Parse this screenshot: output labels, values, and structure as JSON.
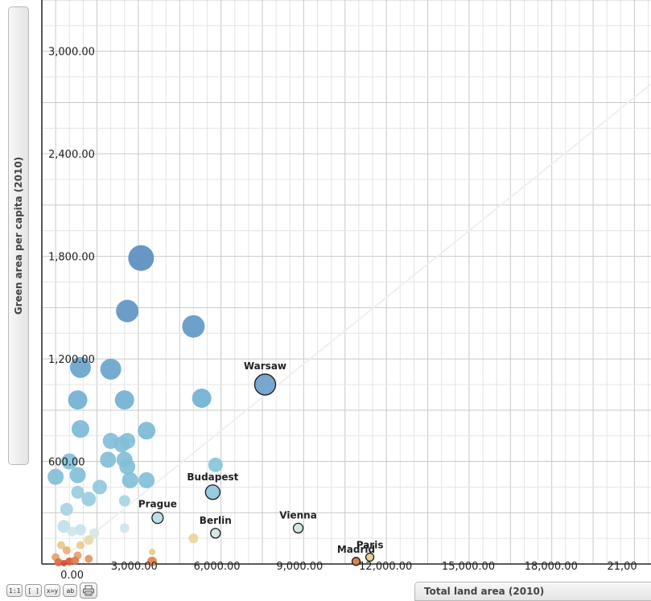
{
  "chart_data": {
    "type": "scatter",
    "xlabel": "Total land area (2010)",
    "ylabel": "Green area per capita (2010)",
    "xlim": [
      -500,
      21600
    ],
    "ylim": [
      0,
      3300
    ],
    "x_ticks": [
      "0.00",
      "3,000.00",
      "6,000.00",
      "9,000.00",
      "12,000.00",
      "15,000.00",
      "18,000.00",
      "21,00"
    ],
    "y_ticks": [
      "600.00",
      "1,200.00",
      "1,800.00",
      "2,400.00",
      "3,000.00"
    ],
    "points": [
      {
        "x": 3100,
        "y": 1790,
        "r": 16,
        "color": "#5a8fc0",
        "label": ""
      },
      {
        "x": 2600,
        "y": 1480,
        "r": 14,
        "color": "#5f95c3",
        "label": ""
      },
      {
        "x": 5000,
        "y": 1390,
        "r": 14,
        "color": "#6199c6",
        "label": ""
      },
      {
        "x": 900,
        "y": 1150,
        "r": 13,
        "color": "#6aa4cc",
        "label": ""
      },
      {
        "x": 2000,
        "y": 1140,
        "r": 13,
        "color": "#6aa4cc",
        "label": ""
      },
      {
        "x": 7600,
        "y": 1050,
        "r": 13,
        "color": "#6d9fcb",
        "label": "Warsaw"
      },
      {
        "x": 800,
        "y": 960,
        "r": 12,
        "color": "#72b1d3",
        "label": ""
      },
      {
        "x": 2500,
        "y": 960,
        "r": 12,
        "color": "#72b1d3",
        "label": ""
      },
      {
        "x": 5300,
        "y": 970,
        "r": 12,
        "color": "#72b1d3",
        "label": ""
      },
      {
        "x": 900,
        "y": 790,
        "r": 11,
        "color": "#7bbad6",
        "label": ""
      },
      {
        "x": 3300,
        "y": 780,
        "r": 11,
        "color": "#7bbad6",
        "label": ""
      },
      {
        "x": 2000,
        "y": 720,
        "r": 10,
        "color": "#82bfd8",
        "label": ""
      },
      {
        "x": 2400,
        "y": 700,
        "r": 10,
        "color": "#82bfd8",
        "label": ""
      },
      {
        "x": 2600,
        "y": 720,
        "r": 10,
        "color": "#82bfd8",
        "label": ""
      },
      {
        "x": 500,
        "y": 600,
        "r": 10,
        "color": "#82bfd8",
        "label": ""
      },
      {
        "x": 1900,
        "y": 610,
        "r": 10,
        "color": "#82bfd8",
        "label": ""
      },
      {
        "x": 2500,
        "y": 610,
        "r": 10,
        "color": "#82bfd8",
        "label": ""
      },
      {
        "x": 2600,
        "y": 570,
        "r": 10,
        "color": "#82bfd8",
        "label": ""
      },
      {
        "x": 0,
        "y": 510,
        "r": 10,
        "color": "#82bfd8",
        "label": ""
      },
      {
        "x": 800,
        "y": 520,
        "r": 10,
        "color": "#82bfd8",
        "label": ""
      },
      {
        "x": 2700,
        "y": 490,
        "r": 10,
        "color": "#82bfd8",
        "label": ""
      },
      {
        "x": 3300,
        "y": 490,
        "r": 10,
        "color": "#82bfd8",
        "label": ""
      },
      {
        "x": 5800,
        "y": 580,
        "r": 9,
        "color": "#88c4da",
        "label": ""
      },
      {
        "x": 1600,
        "y": 450,
        "r": 9,
        "color": "#8fc8dc",
        "label": ""
      },
      {
        "x": 800,
        "y": 420,
        "r": 8,
        "color": "#98cddf",
        "label": ""
      },
      {
        "x": 1200,
        "y": 380,
        "r": 9,
        "color": "#98cddf",
        "label": ""
      },
      {
        "x": 5700,
        "y": 420,
        "r": 9,
        "color": "#8fc8dc",
        "label": "Budapest"
      },
      {
        "x": 2500,
        "y": 370,
        "r": 7,
        "color": "#a7d4e3",
        "label": ""
      },
      {
        "x": 400,
        "y": 320,
        "r": 8,
        "color": "#a7d4e3",
        "label": ""
      },
      {
        "x": 3700,
        "y": 270,
        "r": 7,
        "color": "#b8dbe6",
        "label": "Prague"
      },
      {
        "x": 300,
        "y": 220,
        "r": 8,
        "color": "#bfe0e8",
        "label": ""
      },
      {
        "x": 900,
        "y": 200,
        "r": 7,
        "color": "#c7e3ea",
        "label": ""
      },
      {
        "x": 600,
        "y": 190,
        "r": 6,
        "color": "#cfe6ea",
        "label": ""
      },
      {
        "x": 1400,
        "y": 180,
        "r": 6,
        "color": "#d3e6e6",
        "label": ""
      },
      {
        "x": 2500,
        "y": 210,
        "r": 6,
        "color": "#cfe6ea",
        "label": ""
      },
      {
        "x": 5800,
        "y": 180,
        "r": 6,
        "color": "#d0e4e4",
        "label": "Berlin"
      },
      {
        "x": 8800,
        "y": 210,
        "r": 6,
        "color": "#d0e4e4",
        "label": "Vienna"
      },
      {
        "x": 1200,
        "y": 140,
        "r": 6,
        "color": "#e8d9a8",
        "label": ""
      },
      {
        "x": 5000,
        "y": 150,
        "r": 6,
        "color": "#ecd49a",
        "label": ""
      },
      {
        "x": 200,
        "y": 110,
        "r": 5,
        "color": "#edc78a",
        "label": ""
      },
      {
        "x": 400,
        "y": 80,
        "r": 5,
        "color": "#e8b07c",
        "label": ""
      },
      {
        "x": 900,
        "y": 110,
        "r": 5,
        "color": "#ecc88c",
        "label": ""
      },
      {
        "x": 3500,
        "y": 70,
        "r": 4,
        "color": "#ecc88c",
        "label": ""
      },
      {
        "x": 0,
        "y": 40,
        "r": 5,
        "color": "#e6a26c",
        "label": ""
      },
      {
        "x": 800,
        "y": 50,
        "r": 5,
        "color": "#e6a06a",
        "label": ""
      },
      {
        "x": 1200,
        "y": 30,
        "r": 5,
        "color": "#e4935e",
        "label": ""
      },
      {
        "x": 100,
        "y": 10,
        "r": 5,
        "color": "#df6a44",
        "label": ""
      },
      {
        "x": 500,
        "y": 15,
        "r": 5,
        "color": "#dc5a3a",
        "label": ""
      },
      {
        "x": 700,
        "y": 20,
        "r": 5,
        "color": "#e07a4a",
        "label": ""
      },
      {
        "x": 300,
        "y": 5,
        "r": 4,
        "color": "#d84c34",
        "label": ""
      },
      {
        "x": 3500,
        "y": 15,
        "r": 6,
        "color": "#e0844e",
        "label": ""
      },
      {
        "x": 11400,
        "y": 40,
        "r": 5,
        "color": "#e8c88c",
        "label": "Paris"
      },
      {
        "x": 10900,
        "y": 15,
        "r": 5,
        "color": "#d8754a",
        "label": "Madrid"
      }
    ],
    "grid": true
  },
  "toolbar": {
    "buttons": [
      "1:1",
      "[ ]",
      "x=y",
      "ab"
    ]
  }
}
